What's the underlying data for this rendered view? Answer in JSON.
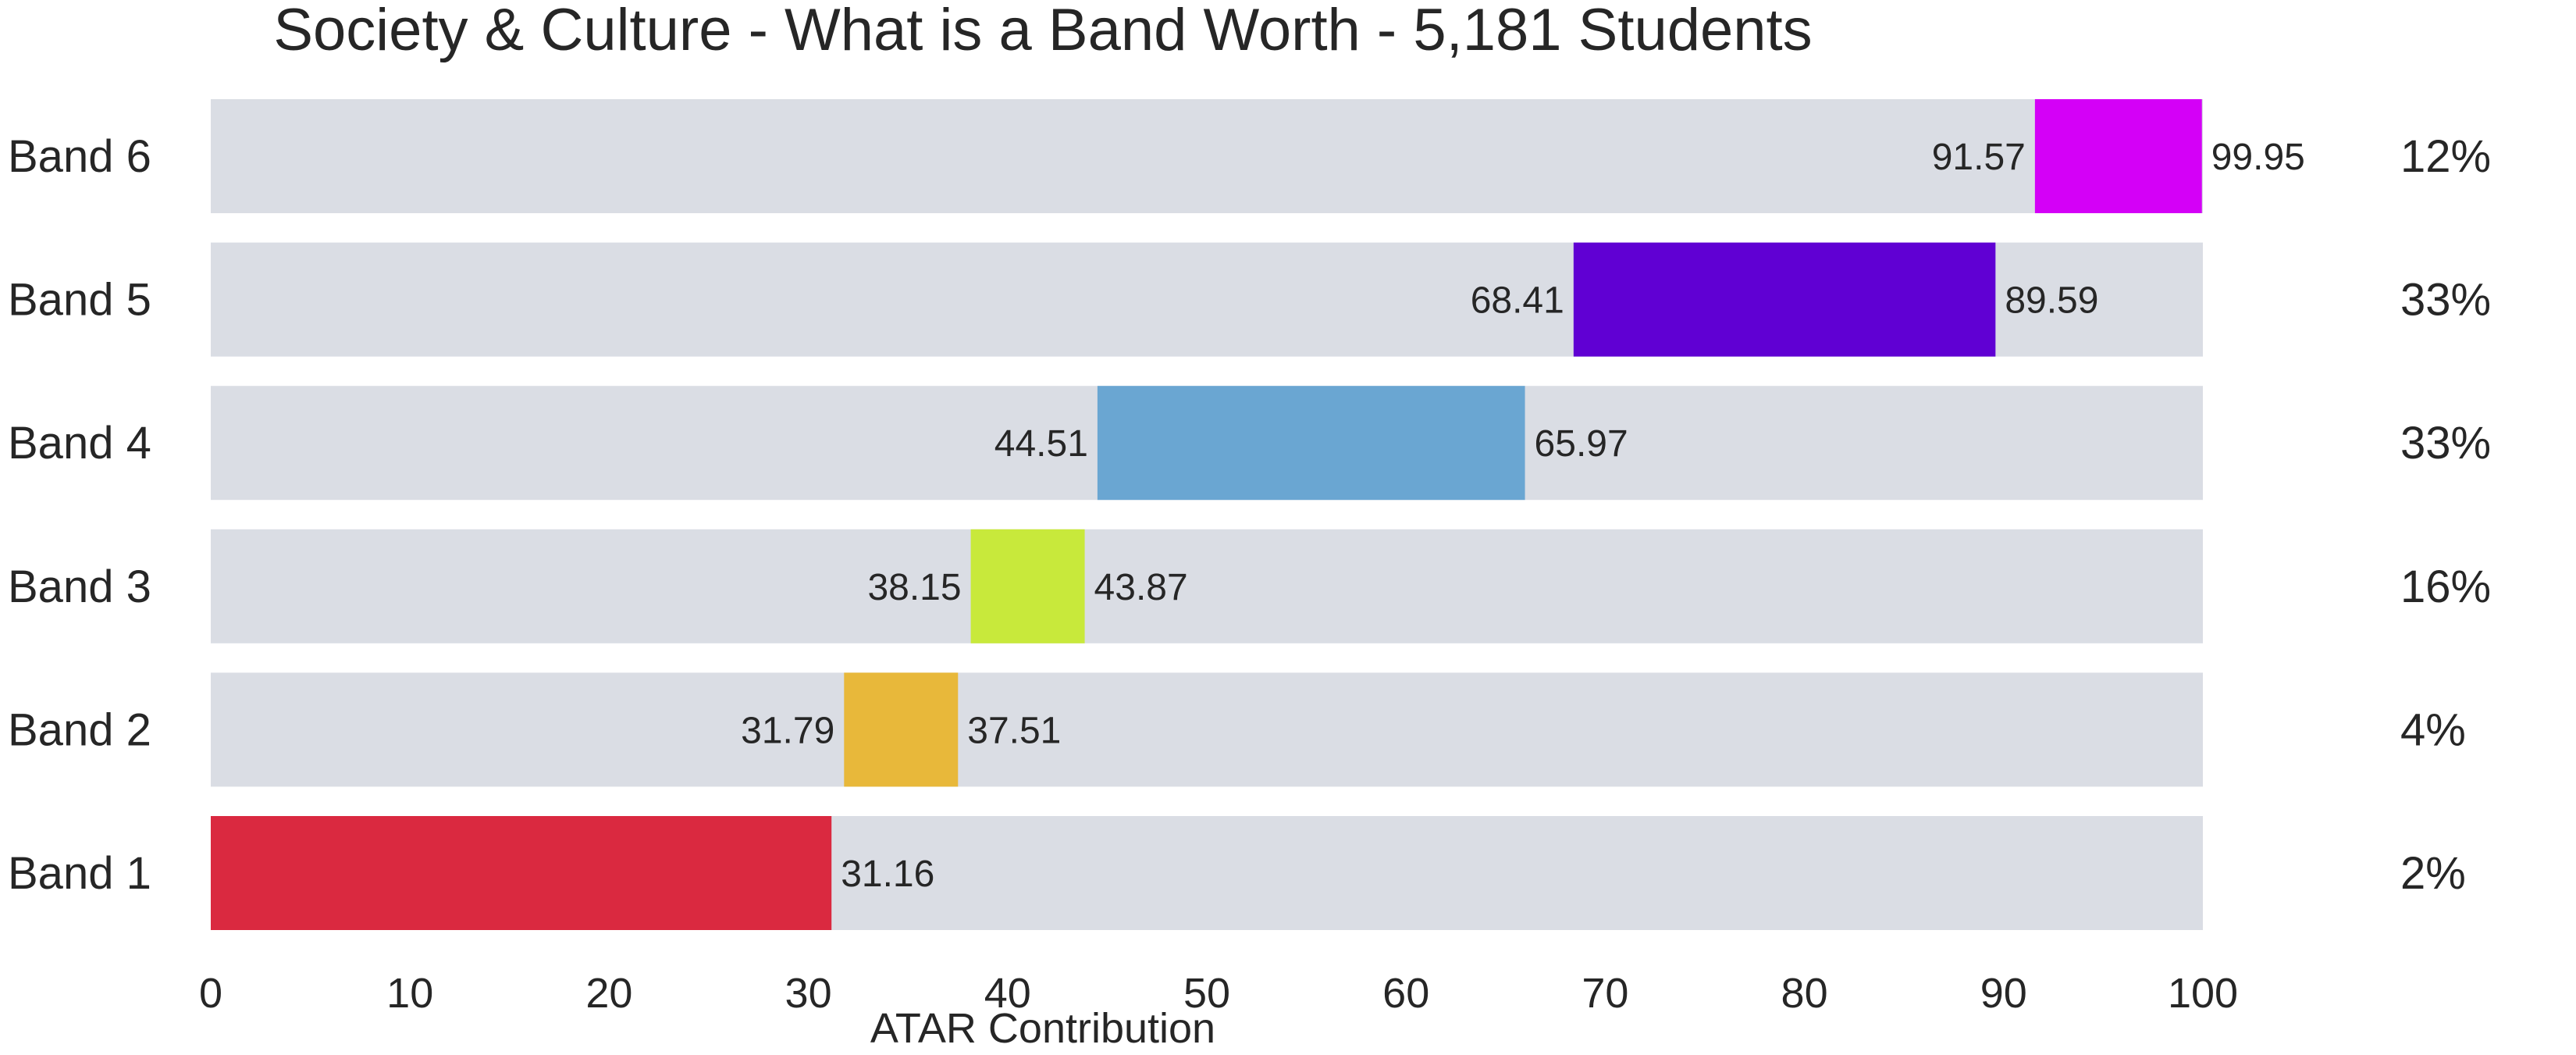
{
  "chart_data": {
    "type": "bar",
    "subtype": "floating-range-horizontal",
    "title": "Society & Culture - What is a Band Worth - 5,181 Students",
    "xlabel": "ATAR Contribution",
    "ylabel": "",
    "xlim": [
      0,
      100
    ],
    "xticks": [
      "0",
      "10",
      "20",
      "30",
      "40",
      "50",
      "60",
      "70",
      "80",
      "90",
      "100"
    ],
    "xtick_values": [
      0,
      10,
      20,
      30,
      40,
      50,
      60,
      70,
      80,
      90,
      100
    ],
    "grid": false,
    "legend": "none",
    "track_color": "#dadde4",
    "bands": [
      {
        "name": "Band 6",
        "min": 91.57,
        "max": 99.95,
        "min_label": "91.57",
        "max_label": "99.95",
        "percent": "12%",
        "color": "#d400f7"
      },
      {
        "name": "Band 5",
        "min": 68.41,
        "max": 89.59,
        "min_label": "68.41",
        "max_label": "89.59",
        "percent": "33%",
        "color": "#6000d3"
      },
      {
        "name": "Band 4",
        "min": 44.51,
        "max": 65.97,
        "min_label": "44.51",
        "max_label": "65.97",
        "percent": "33%",
        "color": "#6aa6d2"
      },
      {
        "name": "Band 3",
        "min": 38.15,
        "max": 43.87,
        "min_label": "38.15",
        "max_label": "43.87",
        "percent": "16%",
        "color": "#c8e93b"
      },
      {
        "name": "Band 2",
        "min": 31.79,
        "max": 37.51,
        "min_label": "31.79",
        "max_label": "37.51",
        "percent": "4%",
        "color": "#e8b83a"
      },
      {
        "name": "Band 1",
        "min": 0,
        "max": 31.16,
        "min_label": "",
        "max_label": "31.16",
        "percent": "2%",
        "color": "#da2940"
      }
    ]
  }
}
